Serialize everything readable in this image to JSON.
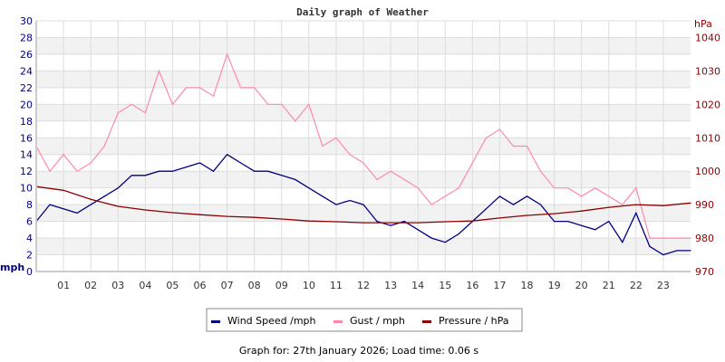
{
  "chart_data": {
    "type": "line",
    "title": "Daily graph of Weather",
    "y_left_label": "mph",
    "y_right_label": "hPa",
    "ylim_left": [
      0,
      30
    ],
    "ylim_right": [
      970,
      1045
    ],
    "xlim": [
      0,
      24
    ],
    "x_ticks": [
      "01",
      "02",
      "03",
      "04",
      "05",
      "06",
      "07",
      "08",
      "09",
      "10",
      "11",
      "12",
      "13",
      "14",
      "15",
      "16",
      "17",
      "18",
      "19",
      "20",
      "21",
      "22",
      "23"
    ],
    "y_left_ticks": [
      0,
      2,
      4,
      6,
      8,
      10,
      12,
      14,
      16,
      18,
      20,
      22,
      24,
      26,
      28,
      30
    ],
    "y_right_ticks": [
      970,
      980,
      990,
      1000,
      1010,
      1020,
      1030,
      1040
    ],
    "grid": true,
    "legend_position": "bottom",
    "series": [
      {
        "name": "Wind Speed /mph",
        "axis": "left",
        "color": "#000080",
        "x": [
          0,
          0.5,
          1,
          1.5,
          2,
          2.5,
          3,
          3.5,
          4,
          4.5,
          5,
          5.5,
          6,
          6.5,
          7,
          7.5,
          8,
          8.5,
          9,
          9.5,
          10,
          10.5,
          11,
          11.5,
          12,
          12.5,
          13,
          13.5,
          14,
          14.5,
          15,
          15.5,
          16,
          16.5,
          17,
          17.5,
          18,
          18.5,
          19,
          19.5,
          20,
          20.5,
          21,
          21.5,
          22,
          22.5,
          23,
          23.5,
          24
        ],
        "values": [
          6,
          8,
          7.5,
          7,
          8,
          9,
          10,
          11.5,
          11.5,
          12,
          12,
          12.5,
          13,
          12,
          14,
          13,
          12,
          12,
          11.5,
          11,
          10,
          9,
          8,
          8.5,
          8,
          6,
          5.5,
          6,
          5,
          4,
          3.5,
          4.5,
          6,
          7.5,
          9,
          8,
          9,
          8,
          6,
          6,
          5.5,
          5,
          6,
          3.5,
          7,
          3,
          2,
          2.5,
          2.5
        ]
      },
      {
        "name": "Gust / mph",
        "axis": "left",
        "color": "#ff88aa",
        "x": [
          0,
          0.5,
          1,
          1.5,
          2,
          2.5,
          3,
          3.5,
          4,
          4.5,
          5,
          5.5,
          6,
          6.5,
          7,
          7.5,
          8,
          8.5,
          9,
          9.5,
          10,
          10.5,
          11,
          11.5,
          12,
          12.5,
          13,
          13.5,
          14,
          14.5,
          15,
          15.5,
          16,
          16.5,
          17,
          17.5,
          18,
          18.5,
          19,
          19.5,
          20,
          20.5,
          21,
          21.5,
          22,
          22.5,
          23,
          23.5,
          24
        ],
        "values": [
          15,
          12,
          14,
          12,
          13,
          15,
          19,
          20,
          19,
          24,
          20,
          22,
          22,
          21,
          26,
          22,
          22,
          20,
          20,
          18,
          20,
          15,
          16,
          14,
          13,
          11,
          12,
          11,
          10,
          8,
          9,
          10,
          13,
          16,
          17,
          15,
          15,
          12,
          10,
          10,
          9,
          10,
          9,
          8,
          10,
          4,
          4,
          4,
          4
        ]
      },
      {
        "name": "Pressure / hPa",
        "axis": "right",
        "color": "#8b0000",
        "x": [
          0,
          1,
          2,
          3,
          4,
          5,
          6,
          7,
          8,
          9,
          10,
          11,
          12,
          13,
          14,
          15,
          16,
          17,
          18,
          19,
          20,
          21,
          22,
          23,
          24
        ],
        "values": [
          995.4,
          994.3,
          991.6,
          989.5,
          988.4,
          987.6,
          987,
          986.5,
          986.2,
          985.7,
          985.1,
          984.9,
          984.6,
          984.6,
          984.6,
          984.9,
          985.1,
          986,
          986.8,
          987.3,
          988.1,
          989.2,
          990,
          989.7,
          990.5
        ]
      }
    ]
  },
  "legend": {
    "items": [
      "Wind Speed /mph",
      "Gust / mph",
      "Pressure / hPa"
    ]
  },
  "footer": "Graph for: 27th January 2026; Load time: 0.06 s"
}
